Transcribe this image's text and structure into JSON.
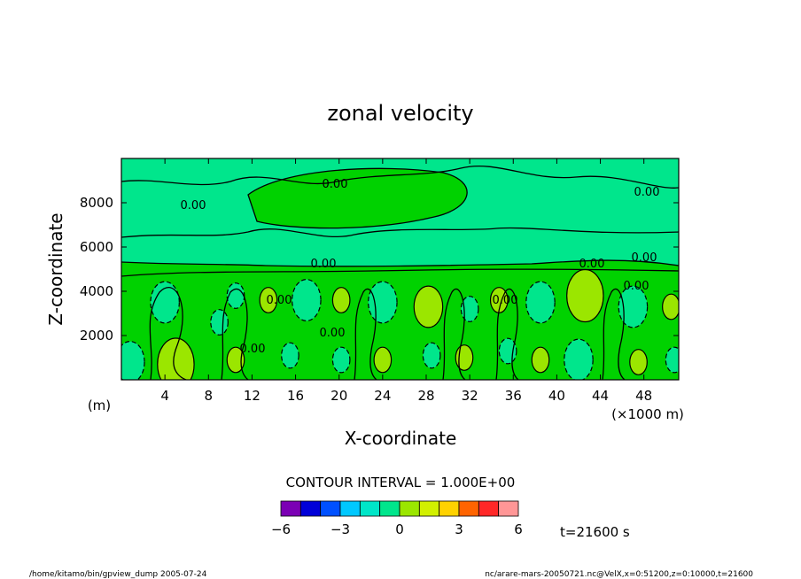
{
  "chart_data": {
    "type": "heatmap",
    "title": "zonal velocity",
    "xlabel": "X-coordinate",
    "ylabel": "Z-coordinate",
    "x_unit": "(×1000 m)",
    "y_unit": "(m)",
    "xlim": [
      0,
      51.2
    ],
    "ylim": [
      0,
      10000
    ],
    "x_ticks": [
      "4",
      "8",
      "12",
      "16",
      "20",
      "24",
      "28",
      "32",
      "36",
      "40",
      "44",
      "48"
    ],
    "y_ticks": [
      "2000",
      "4000",
      "6000",
      "8000"
    ],
    "x_tick_values": [
      4,
      8,
      12,
      16,
      20,
      24,
      28,
      32,
      36,
      40,
      44,
      48
    ],
    "y_tick_values": [
      2000,
      4000,
      6000,
      8000
    ],
    "contour_interval": "CONTOUR INTERVAL = 1.000E+00",
    "contour_labels": [
      "0.00",
      "0.00",
      "0.00",
      "0.00",
      "0.00",
      "0.00",
      "0.00",
      "0.00",
      "0.00",
      "0.00",
      "0.00"
    ],
    "colorbar": {
      "levels": [
        -6,
        -5,
        -4,
        -3,
        -2,
        -1,
        0,
        1,
        2,
        3,
        4,
        5,
        6
      ],
      "tick_labels": [
        "-6",
        "-3",
        "0",
        "3",
        "6"
      ],
      "colors": [
        "#7b00b4",
        "#0000d8",
        "#0050ff",
        "#00c8ff",
        "#00e6c8",
        "#00e68c",
        "#00d200",
        "#9be600",
        "#d2f000",
        "#ffd200",
        "#ff6400",
        "#ff2828",
        "#ff9696"
      ]
    },
    "time_label": "t=21600 s",
    "footer_left": "/home/kitamo/bin/gpview_dump  2005-07-24",
    "footer_right": "nc/arare-mars-20050721.nc@VelX,x=0:51200,z=0:10000,t=21600",
    "cells": [
      {
        "x": 0.8,
        "z": 800,
        "v": -2
      },
      {
        "x": 5.0,
        "z": 700,
        "v": 3
      },
      {
        "x": 4.0,
        "z": 3500,
        "v": -2
      },
      {
        "x": 10.5,
        "z": 900,
        "v": 1
      },
      {
        "x": 10.5,
        "z": 3800,
        "v": -1
      },
      {
        "x": 13.5,
        "z": 3600,
        "v": 1
      },
      {
        "x": 17.0,
        "z": 3600,
        "v": -2
      },
      {
        "x": 20.2,
        "z": 3600,
        "v": 1
      },
      {
        "x": 20.2,
        "z": 900,
        "v": -1
      },
      {
        "x": 24.0,
        "z": 3500,
        "v": -2
      },
      {
        "x": 24.0,
        "z": 900,
        "v": 1
      },
      {
        "x": 28.2,
        "z": 3300,
        "v": 2
      },
      {
        "x": 28.5,
        "z": 1100,
        "v": -1
      },
      {
        "x": 32.0,
        "z": 3200,
        "v": -1
      },
      {
        "x": 31.5,
        "z": 1000,
        "v": 1
      },
      {
        "x": 34.7,
        "z": 3600,
        "v": 1
      },
      {
        "x": 38.5,
        "z": 3500,
        "v": -2
      },
      {
        "x": 42.6,
        "z": 3800,
        "v": 3
      },
      {
        "x": 42.0,
        "z": 900,
        "v": -2
      },
      {
        "x": 38.5,
        "z": 900,
        "v": 1
      },
      {
        "x": 47.0,
        "z": 3300,
        "v": -2
      },
      {
        "x": 47.5,
        "z": 800,
        "v": 1
      },
      {
        "x": 50.5,
        "z": 3300,
        "v": 1
      },
      {
        "x": 50.8,
        "z": 900,
        "v": -1
      },
      {
        "x": 15.5,
        "z": 1100,
        "v": -1
      },
      {
        "x": 9.0,
        "z": 2600,
        "v": -1
      },
      {
        "x": 35.5,
        "z": 1300,
        "v": -1
      }
    ]
  }
}
